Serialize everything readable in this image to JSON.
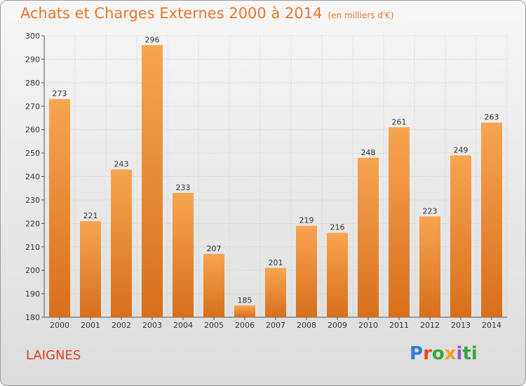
{
  "header": {
    "title": "Achats et Charges Externes 2000 à 2014",
    "unit": "(en milliers d'€)"
  },
  "footer": {
    "commune": "LAIGNES",
    "logo_letters": [
      "P",
      "r",
      "o",
      "x",
      "i",
      "ti"
    ]
  },
  "colors": {
    "bar_top": "#f7a54f",
    "bar_bottom": "#d86f1c",
    "title": "#e8762a",
    "commune": "#e0431f"
  },
  "chart_data": {
    "type": "bar",
    "categories": [
      "2000",
      "2001",
      "2002",
      "2003",
      "2004",
      "2005",
      "2006",
      "2007",
      "2008",
      "2009",
      "2010",
      "2011",
      "2012",
      "2013",
      "2014"
    ],
    "values": [
      273,
      221,
      243,
      296,
      233,
      207,
      185,
      201,
      219,
      216,
      248,
      261,
      223,
      249,
      263
    ],
    "ylim": [
      180,
      300
    ],
    "yticks": [
      180,
      190,
      200,
      210,
      220,
      230,
      240,
      250,
      260,
      270,
      280,
      290,
      300
    ],
    "grid": true
  }
}
